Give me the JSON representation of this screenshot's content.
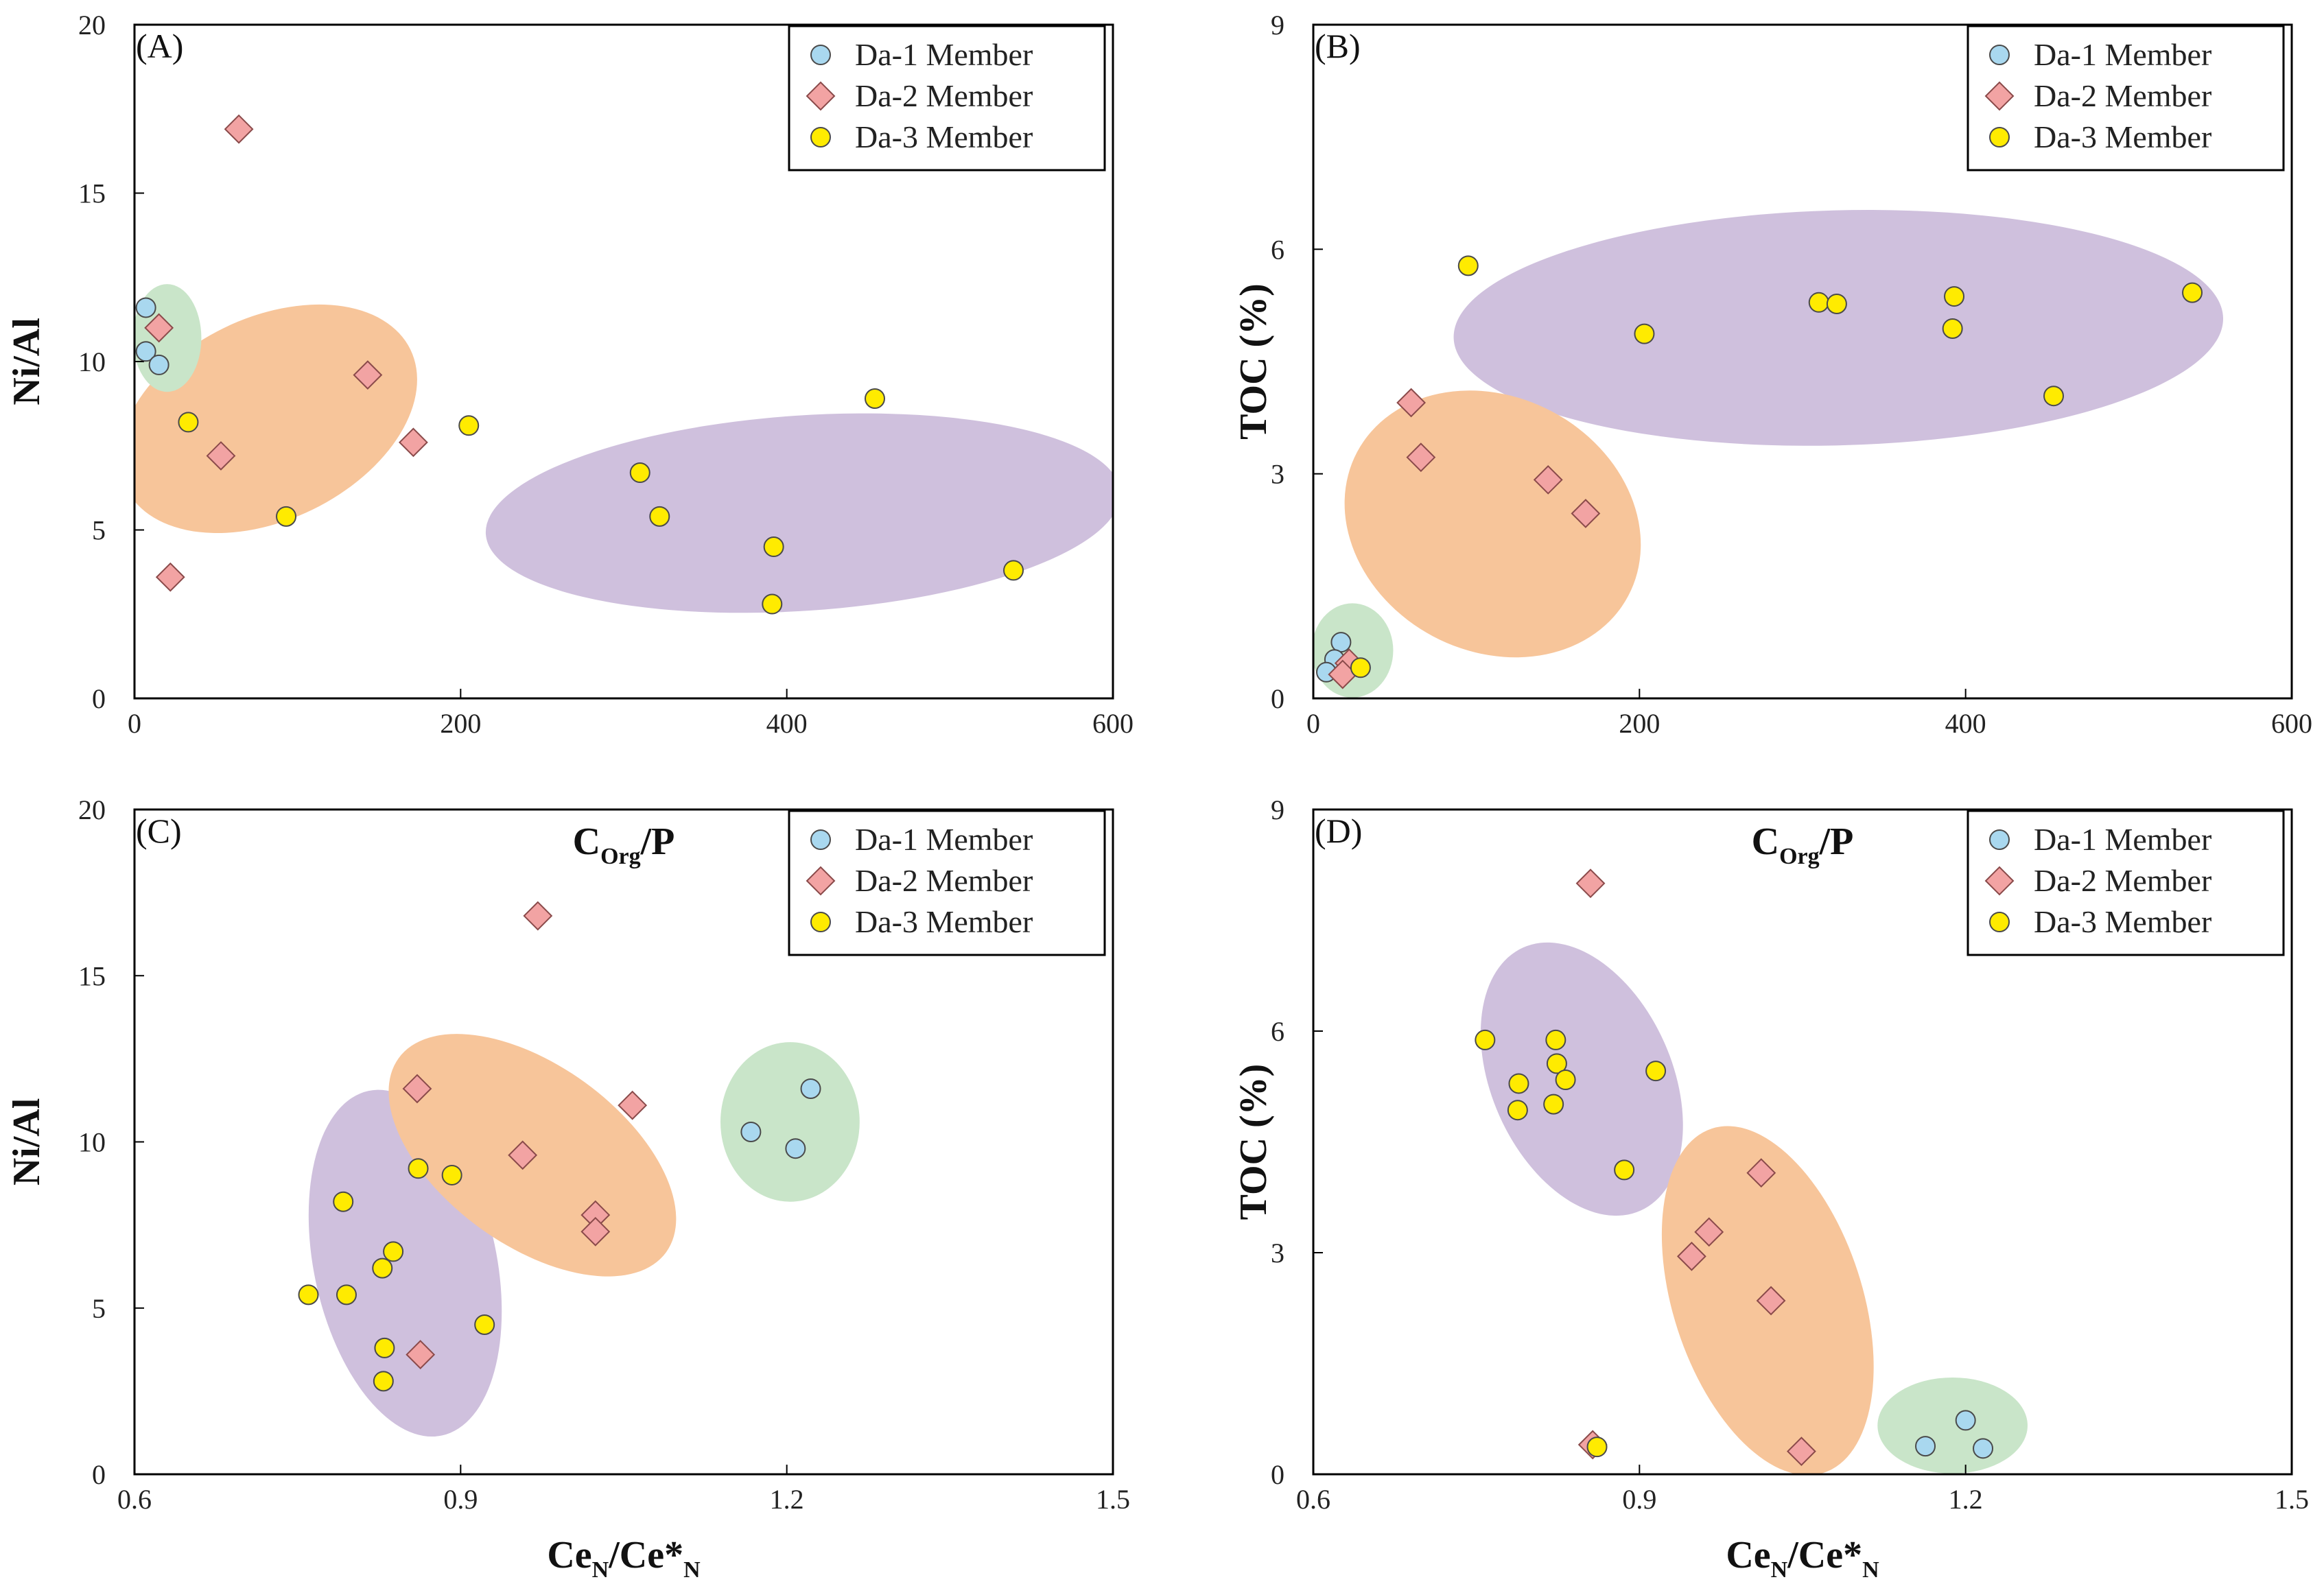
{
  "series_styles": [
    {
      "name": "Da-1 Member",
      "shape": "circle",
      "fill": "#a9d8ef",
      "stroke": "#4a4a4a"
    },
    {
      "name": "Da-2 Member",
      "shape": "diamond",
      "fill": "#f2a3a3",
      "stroke": "#8a4a4a"
    },
    {
      "name": "Da-3 Member",
      "shape": "circle",
      "fill": "#ffeb00",
      "stroke": "#4a4a4a"
    }
  ],
  "ellipse_colors": {
    "green": "#c9e5c9",
    "orange": "#f7c59a",
    "purple": "#cfc0dd"
  },
  "chart_data": [
    {
      "panel": "(A)",
      "type": "scatter",
      "title": "",
      "xlabel": {
        "main": "C",
        "sub": "Org",
        "rest": "/P"
      },
      "ylabel": "Ni/Al",
      "xlim": [
        0,
        600
      ],
      "ylim": [
        0,
        20
      ],
      "xticks": [
        0,
        200,
        400,
        600
      ],
      "xtick_labels": [
        "0",
        "200",
        "400",
        "600"
      ],
      "yticks": [
        0,
        5,
        10,
        15,
        20
      ],
      "ytick_labels": [
        "0",
        "5",
        "10",
        "15",
        "20"
      ],
      "legend": [
        "Da-1 Member",
        "Da-2 Member",
        "Da-3 Member"
      ],
      "legend_position": "top-right",
      "regions": [
        {
          "color": "purple",
          "cx": 410,
          "cy": 5.5,
          "rx": 195,
          "ry": 2.9,
          "angle": -3.8
        },
        {
          "color": "orange",
          "cx": 82,
          "cy": 8.3,
          "rx": 97,
          "ry": 3.0,
          "angle": -26
        },
        {
          "color": "green",
          "cx": 20,
          "cy": 10.7,
          "rx": 21,
          "ry": 1.6,
          "angle": 0
        }
      ],
      "series": [
        {
          "name": "Da-1 Member",
          "points": [
            [
              7,
              11.6
            ],
            [
              7,
              10.3
            ],
            [
              15,
              9.9
            ]
          ]
        },
        {
          "name": "Da-2 Member",
          "points": [
            [
              64,
              16.9
            ],
            [
              15,
              11.0
            ],
            [
              143,
              9.6
            ],
            [
              171,
              7.6
            ],
            [
              53,
              7.2
            ],
            [
              22,
              3.6
            ]
          ]
        },
        {
          "name": "Da-3 Member",
          "points": [
            [
              33,
              8.2
            ],
            [
              93,
              5.4
            ],
            [
              205,
              8.1
            ],
            [
              310,
              6.7
            ],
            [
              322,
              5.4
            ],
            [
              392,
              4.5
            ],
            [
              391,
              2.8
            ],
            [
              454,
              8.9
            ],
            [
              539,
              3.8
            ]
          ]
        }
      ]
    },
    {
      "panel": "(B)",
      "type": "scatter",
      "title": "",
      "xlabel": {
        "main": "C",
        "sub": "Org",
        "rest": "/P"
      },
      "ylabel": "TOC (%)",
      "xlim": [
        0,
        600
      ],
      "ylim": [
        0,
        9
      ],
      "xticks": [
        0,
        200,
        400,
        600
      ],
      "xtick_labels": [
        "0",
        "200",
        "400",
        "600"
      ],
      "yticks": [
        0,
        3,
        6,
        9
      ],
      "ytick_labels": [
        "0",
        "3",
        "6",
        "9"
      ],
      "legend": [
        "Da-1 Member",
        "Da-2 Member",
        "Da-3 Member"
      ],
      "legend_position": "top-right",
      "regions": [
        {
          "color": "purple",
          "cx": 322,
          "cy": 4.95,
          "rx": 236,
          "ry": 1.57,
          "angle": -1.5
        },
        {
          "color": "orange",
          "cx": 110,
          "cy": 2.33,
          "rx": 78,
          "ry": 2.05,
          "angle": -62
        },
        {
          "color": "green",
          "cx": 24,
          "cy": 0.64,
          "rx": 25,
          "ry": 0.63,
          "angle": 0
        }
      ],
      "series": [
        {
          "name": "Da-1 Member",
          "points": [
            [
              17,
              0.75
            ],
            [
              13,
              0.52
            ],
            [
              8,
              0.35
            ]
          ]
        },
        {
          "name": "Da-2 Member",
          "points": [
            [
              60,
              3.95
            ],
            [
              66,
              3.22
            ],
            [
              144,
              2.92
            ],
            [
              167,
              2.47
            ],
            [
              22,
              0.47
            ],
            [
              18,
              0.32
            ]
          ]
        },
        {
          "name": "Da-3 Member",
          "points": [
            [
              95,
              5.78
            ],
            [
              203,
              4.87
            ],
            [
              310,
              5.29
            ],
            [
              321,
              5.27
            ],
            [
              393,
              5.37
            ],
            [
              392,
              4.94
            ],
            [
              454,
              4.04
            ],
            [
              539,
              5.42
            ],
            [
              29,
              0.41
            ]
          ]
        }
      ]
    },
    {
      "panel": "(C)",
      "type": "scatter",
      "title": "",
      "xlabel": {
        "main": "Ce",
        "sub": "N",
        "rest": "/Ce*",
        "sub2": "N"
      },
      "ylabel": "Ni/Al",
      "xlim": [
        0.6,
        1.5
      ],
      "ylim": [
        0,
        20
      ],
      "xticks": [
        0.6,
        0.9,
        1.2,
        1.5
      ],
      "xtick_labels": [
        "0.6",
        "0.9",
        "1.2",
        "1.5"
      ],
      "yticks": [
        0,
        5,
        10,
        15,
        20
      ],
      "ytick_labels": [
        "0",
        "5",
        "10",
        "15",
        "20"
      ],
      "legend": [
        "Da-1 Member",
        "Da-2 Member",
        "Da-3 Member"
      ],
      "legend_position": "top-right",
      "regions": [
        {
          "color": "purple",
          "cx": 0.849,
          "cy": 6.35,
          "rx": 0.084,
          "ry": 5.3,
          "angle": -12
        },
        {
          "color": "orange",
          "cx": 0.966,
          "cy": 9.6,
          "rx": 0.152,
          "ry": 2.7,
          "angle": 36
        },
        {
          "color": "green",
          "cx": 1.203,
          "cy": 10.6,
          "rx": 0.064,
          "ry": 2.4,
          "angle": 0
        }
      ],
      "series": [
        {
          "name": "Da-1 Member",
          "points": [
            [
              1.222,
              11.6
            ],
            [
              1.167,
              10.3
            ],
            [
              1.208,
              9.8
            ]
          ]
        },
        {
          "name": "Da-2 Member",
          "points": [
            [
              0.971,
              16.8
            ],
            [
              0.86,
              11.6
            ],
            [
              1.058,
              11.1
            ],
            [
              0.957,
              9.6
            ],
            [
              1.024,
              7.8
            ],
            [
              1.024,
              7.3
            ],
            [
              0.863,
              3.6
            ]
          ]
        },
        {
          "name": "Da-3 Member",
          "points": [
            [
              0.792,
              8.2
            ],
            [
              0.861,
              9.2
            ],
            [
              0.892,
              9.0
            ],
            [
              0.838,
              6.7
            ],
            [
              0.828,
              6.2
            ],
            [
              0.76,
              5.4
            ],
            [
              0.795,
              5.4
            ],
            [
              0.922,
              4.5
            ],
            [
              0.83,
              3.8
            ],
            [
              0.829,
              2.8
            ]
          ]
        }
      ]
    },
    {
      "panel": "(D)",
      "type": "scatter",
      "title": "",
      "xlabel": {
        "main": "Ce",
        "sub": "N",
        "rest": "/Ce*",
        "sub2": "N"
      },
      "ylabel": "TOC (%)",
      "xlim": [
        0.6,
        1.5
      ],
      "ylim": [
        0,
        9
      ],
      "xticks": [
        0.6,
        0.9,
        1.2,
        1.5
      ],
      "xtick_labels": [
        "0.6",
        "0.9",
        "1.2",
        "1.5"
      ],
      "yticks": [
        0,
        3,
        6,
        9
      ],
      "ytick_labels": [
        "0",
        "3",
        "6",
        "9"
      ],
      "legend": [
        "Da-1 Member",
        "Da-2 Member",
        "Da-3 Member"
      ],
      "legend_position": "top-right",
      "regions": [
        {
          "color": "purple",
          "cx": 0.847,
          "cy": 5.35,
          "rx": 0.083,
          "ry": 1.95,
          "angle": -24
        },
        {
          "color": "orange",
          "cx": 1.018,
          "cy": 2.35,
          "rx": 0.087,
          "ry": 2.45,
          "angle": -18
        },
        {
          "color": "green",
          "cx": 1.188,
          "cy": 0.66,
          "rx": 0.069,
          "ry": 0.65,
          "angle": 0
        }
      ],
      "series": [
        {
          "name": "Da-1 Member",
          "points": [
            [
              1.2,
              0.73
            ],
            [
              1.163,
              0.38
            ],
            [
              1.216,
              0.35
            ]
          ]
        },
        {
          "name": "Da-2 Member",
          "points": [
            [
              0.855,
              8.0
            ],
            [
              1.012,
              4.08
            ],
            [
              0.964,
              3.28
            ],
            [
              0.948,
              2.95
            ],
            [
              1.021,
              2.35
            ],
            [
              1.049,
              0.31
            ],
            [
              0.857,
              0.4
            ]
          ]
        },
        {
          "name": "Da-3 Member",
          "points": [
            [
              0.758,
              5.88
            ],
            [
              0.789,
              5.29
            ],
            [
              0.788,
              4.93
            ],
            [
              0.823,
              5.88
            ],
            [
              0.824,
              5.56
            ],
            [
              0.832,
              5.34
            ],
            [
              0.821,
              5.01
            ],
            [
              0.915,
              5.46
            ],
            [
              0.886,
              4.12
            ],
            [
              0.861,
              0.37
            ]
          ]
        }
      ]
    }
  ]
}
